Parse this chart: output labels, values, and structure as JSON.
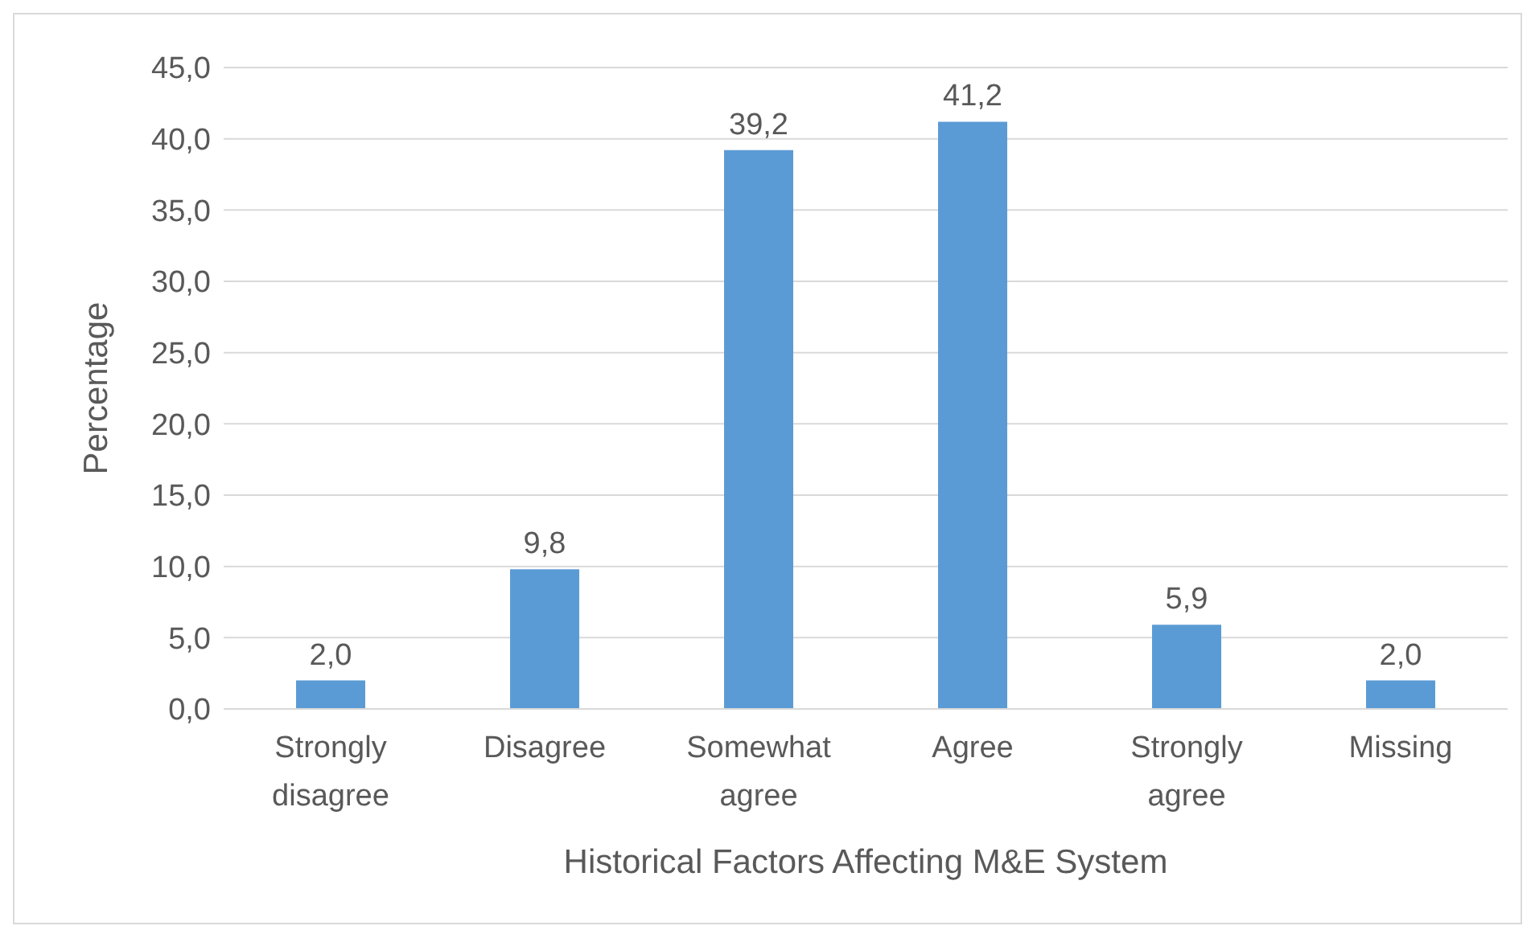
{
  "chart_data": {
    "type": "bar",
    "xlabel": "Historical Factors Affecting M&E System",
    "ylabel": "Percentage",
    "categories": [
      "Strongly disagree",
      "Disagree",
      "Somewhat agree",
      "Agree",
      "Strongly agree",
      "Missing"
    ],
    "values": [
      2.0,
      9.8,
      39.2,
      41.2,
      5.9,
      2.0
    ],
    "value_labels": [
      "2,0",
      "9,8",
      "39,2",
      "41,2",
      "5,9",
      "2,0"
    ],
    "color": "#5b9bd5",
    "ylim": [
      0,
      45
    ],
    "yticks": [
      {
        "value": 0,
        "label": "0,0"
      },
      {
        "value": 5,
        "label": "5,0"
      },
      {
        "value": 10,
        "label": "10,0"
      },
      {
        "value": 15,
        "label": "15,0"
      },
      {
        "value": 20,
        "label": "20,0"
      },
      {
        "value": 25,
        "label": "25,0"
      },
      {
        "value": 30,
        "label": "30,0"
      },
      {
        "value": 35,
        "label": "35,0"
      },
      {
        "value": 40,
        "label": "40,0"
      },
      {
        "value": 45,
        "label": "45,0"
      }
    ],
    "grid": "y",
    "legend": false
  }
}
